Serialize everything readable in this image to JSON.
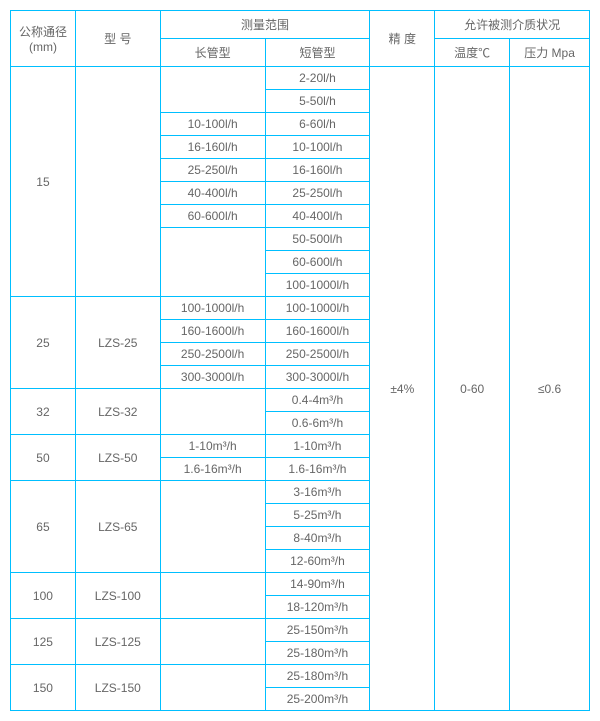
{
  "header": {
    "dn_line1": "公称通径",
    "dn_line2": "(mm)",
    "model": "型  号",
    "range": "测量范围",
    "long_tube": "长管型",
    "short_tube": "短管型",
    "accuracy": "精  度",
    "medium": "允许被测介质状况",
    "temperature": "温度℃",
    "pressure": "压力 Mpa"
  },
  "accuracy_value": "±4%",
  "temp_value": "0-60",
  "press_value": "≤0.6",
  "rows": [
    {
      "dn": "15",
      "dn_rs": 10,
      "model": "",
      "model_rs": 10,
      "long": "",
      "long_rs": 2,
      "short": "2-20l/h"
    },
    {
      "short": "5-50l/h"
    },
    {
      "long": "10-100l/h",
      "short": "6-60l/h"
    },
    {
      "long": "16-160l/h",
      "short": "10-100l/h"
    },
    {
      "long": "25-250l/h",
      "short": "16-160l/h"
    },
    {
      "long": "40-400l/h",
      "short": "25-250l/h"
    },
    {
      "long": "60-600l/h",
      "short": "40-400l/h"
    },
    {
      "long": "",
      "long_rs": 3,
      "short": "50-500l/h"
    },
    {
      "short": "60-600l/h"
    },
    {
      "short": "100-1000l/h"
    },
    {
      "dn": "25",
      "dn_rs": 4,
      "model": "LZS-25",
      "model_rs": 4,
      "long": "100-1000l/h",
      "short": "100-1000l/h"
    },
    {
      "long": "160-1600l/h",
      "short": "160-1600l/h"
    },
    {
      "long": "250-2500l/h",
      "short": "250-2500l/h"
    },
    {
      "long": "300-3000l/h",
      "short": "300-3000l/h"
    },
    {
      "dn": "32",
      "dn_rs": 2,
      "model": "LZS-32",
      "model_rs": 2,
      "long": "",
      "long_rs": 2,
      "short": "0.4-4m³/h"
    },
    {
      "short": "0.6-6m³/h"
    },
    {
      "dn": "50",
      "dn_rs": 2,
      "model": "LZS-50",
      "model_rs": 2,
      "long": "1-10m³/h",
      "short": "1-10m³/h"
    },
    {
      "long": "1.6-16m³/h",
      "short": "1.6-16m³/h"
    },
    {
      "dn": "65",
      "dn_rs": 4,
      "model": "LZS-65",
      "model_rs": 4,
      "long": "",
      "long_rs": 4,
      "short": "3-16m³/h"
    },
    {
      "short": "5-25m³/h"
    },
    {
      "short": "8-40m³/h"
    },
    {
      "short": "12-60m³/h"
    },
    {
      "dn": "100",
      "dn_rs": 2,
      "model": "LZS-100",
      "model_rs": 2,
      "long": "",
      "long_rs": 2,
      "short": "14-90m³/h"
    },
    {
      "short": "18-120m³/h"
    },
    {
      "dn": "125",
      "dn_rs": 2,
      "model": "LZS-125",
      "model_rs": 2,
      "long": "",
      "long_rs": 2,
      "short": "25-150m³/h"
    },
    {
      "short": "25-180m³/h"
    },
    {
      "dn": "150",
      "dn_rs": 2,
      "model": "LZS-150",
      "model_rs": 2,
      "long": "",
      "long_rs": 2,
      "short": "25-180m³/h"
    },
    {
      "short": "25-200m³/h"
    }
  ]
}
